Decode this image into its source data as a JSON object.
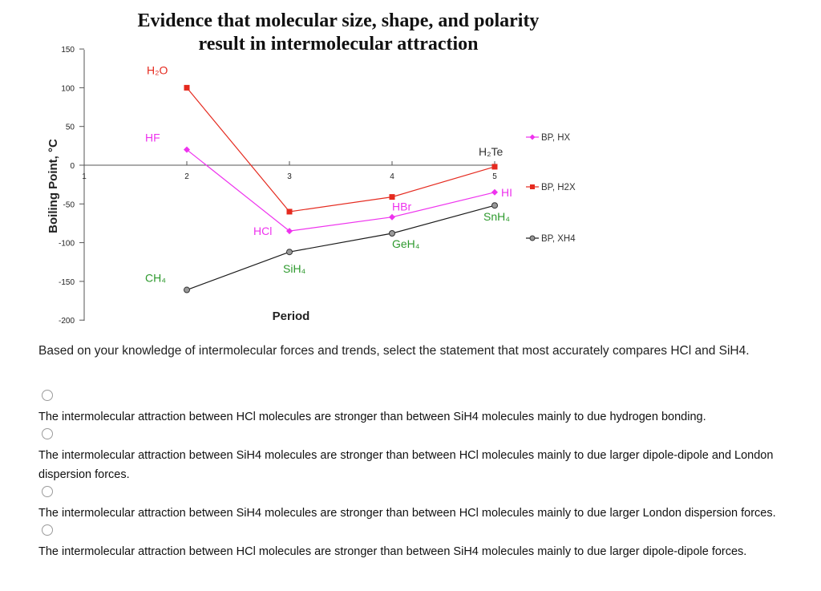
{
  "chart_data": {
    "type": "line",
    "title_lines": [
      "Evidence that molecular size, shape, and polarity",
      "result in intermolecular attraction"
    ],
    "xlabel": "Period",
    "ylabel": "Boiling Point, °C",
    "x_ticks": [
      "1",
      "2",
      "3",
      "4",
      "5"
    ],
    "y_ticks": [
      "150",
      "100",
      "50",
      "0",
      "-50",
      "-100",
      "-150",
      "-200"
    ],
    "xlim": [
      1,
      5
    ],
    "ylim": [
      -200,
      150
    ],
    "grid": false,
    "legend_position": "right",
    "series": [
      {
        "name": "BP, HX",
        "color": "#ee33ee",
        "marker": "diamond",
        "points": [
          {
            "x": 2,
            "y": 20,
            "label": "HF"
          },
          {
            "x": 3,
            "y": -85,
            "label": "HCl"
          },
          {
            "x": 4,
            "y": -67,
            "label": "HBr"
          },
          {
            "x": 5,
            "y": -35,
            "label": "HI"
          }
        ]
      },
      {
        "name": "BP, H2X",
        "color": "#e52a1f",
        "marker": "square",
        "points": [
          {
            "x": 2,
            "y": 100,
            "label": "H₂O"
          },
          {
            "x": 3,
            "y": -60,
            "label": ""
          },
          {
            "x": 4,
            "y": -41,
            "label": ""
          },
          {
            "x": 5,
            "y": -2,
            "label": "H₂Te"
          }
        ]
      },
      {
        "name": "BP, XH4",
        "color": "#1a1a1a",
        "marker": "circle",
        "points": [
          {
            "x": 2,
            "y": -161,
            "label": "CH₄"
          },
          {
            "x": 3,
            "y": -112,
            "label": "SiH₄"
          },
          {
            "x": 4,
            "y": -88,
            "label": "GeH₄"
          },
          {
            "x": 5,
            "y": -52,
            "label": "SnH₄"
          }
        ]
      }
    ]
  },
  "annotation_colors": {
    "HF": "#ee33ee",
    "HCl": "#ee33ee",
    "HBr": "#ee33ee",
    "HI": "#ee33ee",
    "H₂O": "#e52a1f",
    "H₂Te": "#333333",
    "CH₄": "#2e9a2e",
    "SiH₄": "#2e9a2e",
    "GeH₄": "#2e9a2e",
    "SnH₄": "#2e9a2e"
  },
  "question": "Based on your knowledge of intermolecular forces and trends, select the statement that most accurately compares HCl and SiH4.",
  "options": [
    "The intermolecular attraction between HCl molecules are stronger than between  SiH4 molecules mainly to due hydrogen bonding.",
    "The intermolecular attraction between  SiH4 molecules are stronger than between  HCl molecules mainly to due larger dipole-dipole and London dispersion forces.",
    "The intermolecular attraction between SiH4 molecules are stronger than between HCl molecules mainly to due larger London dispersion forces.",
    "The intermolecular attraction between HCl molecules are stronger than between SiH4 molecules mainly to due larger dipole-dipole forces."
  ]
}
